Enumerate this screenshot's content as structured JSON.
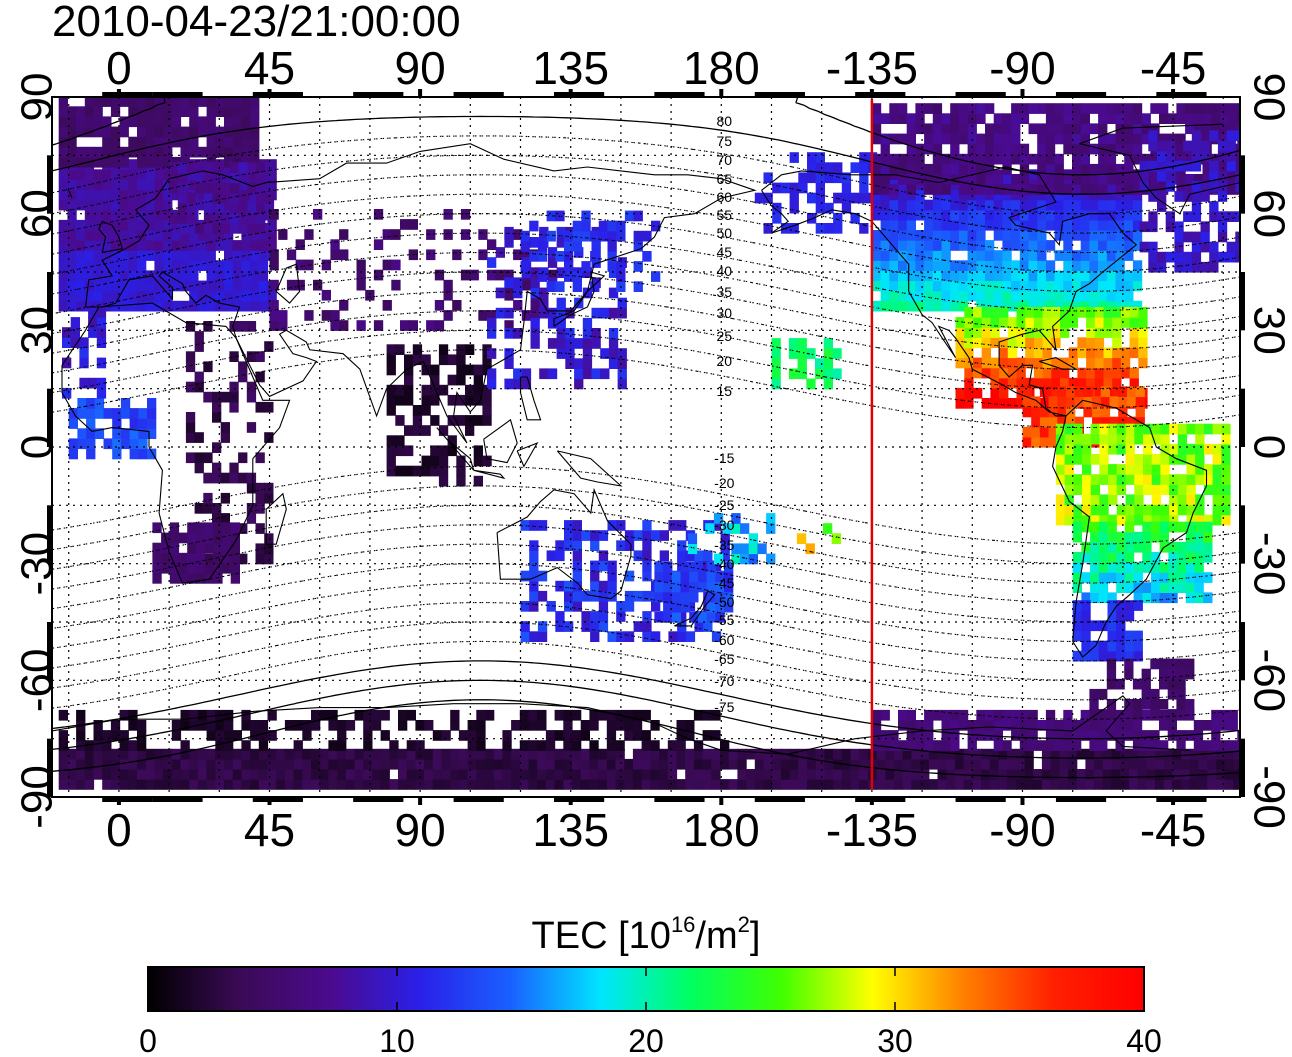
{
  "title": "2010-04-23/21:00:00",
  "map": {
    "lon_ticks": [
      "0",
      "45",
      "90",
      "135",
      "180",
      "-135",
      "-90",
      "-45"
    ],
    "lon_values": [
      0,
      45,
      90,
      135,
      180,
      225,
      270,
      315
    ],
    "lat_ticks": [
      "90",
      "60",
      "30",
      "0",
      "-30",
      "-60",
      "-90"
    ],
    "lat_values": [
      90,
      60,
      30,
      0,
      -30,
      -60,
      -90
    ],
    "lon_range": [
      -20,
      335
    ],
    "lat_range": [
      -90,
      90
    ],
    "grid": true,
    "marker_line": {
      "lon": 225,
      "color": "#e00000"
    },
    "contour_labels": [
      "80",
      "75",
      "70",
      "65",
      "60",
      "55",
      "50",
      "45",
      "40",
      "35",
      "30",
      "25",
      "20",
      "15",
      "-15",
      "-20",
      "-25",
      "-30",
      "-35",
      "-40",
      "-45",
      "-50",
      "-55",
      "-60",
      "-65",
      "-70",
      "-75"
    ]
  },
  "colorbar": {
    "label_prefix": "TEC  [10",
    "label_exp1": "16",
    "label_mid": "/m",
    "label_exp2": "2",
    "label_suffix": "]",
    "ticks": [
      "0",
      "10",
      "20",
      "30",
      "40"
    ],
    "tick_values": [
      0,
      10,
      20,
      30,
      40
    ],
    "range": [
      0,
      40
    ],
    "colors": [
      "#000000",
      "#3a0a55",
      "#4b0a8c",
      "#2a20e8",
      "#1a60ff",
      "#00e5ff",
      "#00ff60",
      "#40ff00",
      "#ffff00",
      "#ff8000",
      "#ff2000",
      "#ff0000"
    ]
  }
}
